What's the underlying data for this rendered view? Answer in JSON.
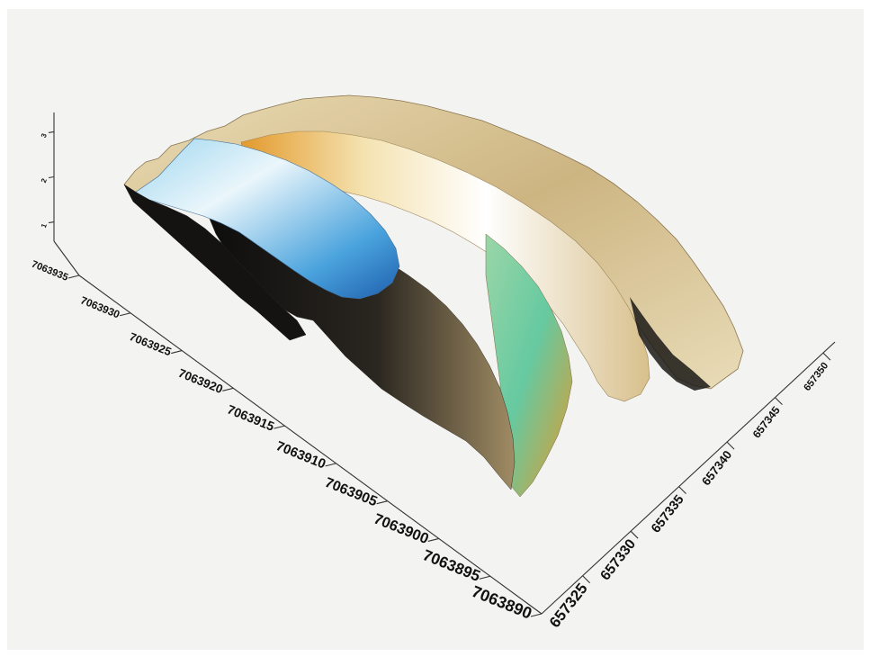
{
  "chart_data": {
    "type": "surface",
    "title": "",
    "xlabel": "",
    "ylabel": "",
    "zlabel": "",
    "x_ticks": [
      "657325",
      "657330",
      "657335",
      "657340",
      "657345",
      "657350"
    ],
    "y_ticks": [
      "7063890",
      "7063895",
      "7063900",
      "7063905",
      "7063910",
      "7063915",
      "7063920",
      "7063925",
      "7063930",
      "7063935"
    ],
    "z_ticks": [
      "1",
      "2",
      "3"
    ],
    "colors": {
      "deep": "#1e6fd0",
      "mid_blue": "#6fb8e8",
      "ice": "#eaf6fb",
      "sand": "#e3cfa0",
      "tan": "#b49c6a",
      "orange": "#e39a2c",
      "green": "#66c9a0",
      "shadow": "#111111",
      "background": "#f3f3f1"
    }
  }
}
